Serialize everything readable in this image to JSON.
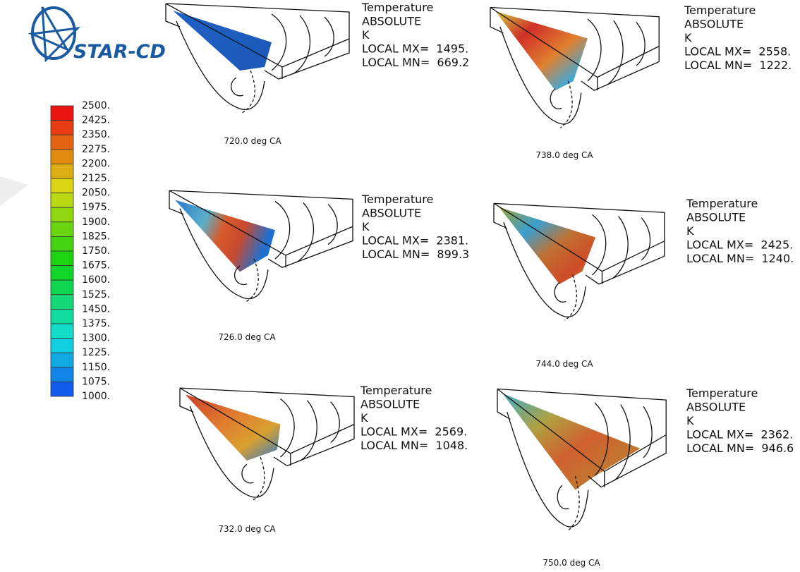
{
  "logo": "STAR-CD",
  "legend": {
    "labels": [
      "2500.",
      "2425.",
      "2350.",
      "2275.",
      "2200.",
      "2125.",
      "2050.",
      "1975.",
      "1900.",
      "1825.",
      "1750.",
      "1675.",
      "1600.",
      "1525.",
      "1450.",
      "1375.",
      "1300.",
      "1225.",
      "1150.",
      "1075.",
      "1000."
    ]
  },
  "panels": [
    {
      "lines": [
        "Temperature",
        "ABSOLUTE",
        "K",
        "LOCAL MX=  1495.",
        "LOCAL MN=  669.2"
      ],
      "caption": "720.0 deg CA"
    },
    {
      "lines": [
        "Temperature",
        "ABSOLUTE",
        "K",
        "LOCAL MX=  2381.",
        "LOCAL MN=  899.3"
      ],
      "caption": "726.0 deg CA"
    },
    {
      "lines": [
        "Temperature",
        "ABSOLUTE",
        "K",
        "LOCAL MX=  2569.",
        "LOCAL MN=  1048."
      ],
      "caption": "732.0 deg CA"
    },
    {
      "lines": [
        "Temperature",
        "ABSOLUTE",
        "K",
        "LOCAL MX=  2558.",
        "LOCAL MN=  1222."
      ],
      "caption": "738.0 deg CA"
    },
    {
      "lines": [
        "Temperature",
        "ABSOLUTE",
        "K",
        "LOCAL MX=  2425.",
        "LOCAL MN=  1240."
      ],
      "caption": "744.0 deg CA"
    },
    {
      "lines": [
        "Temperature",
        "ABSOLUTE",
        "K",
        "LOCAL MX=  2362.",
        "LOCAL MN=  946.6"
      ],
      "caption": "750.0 deg CA"
    }
  ]
}
